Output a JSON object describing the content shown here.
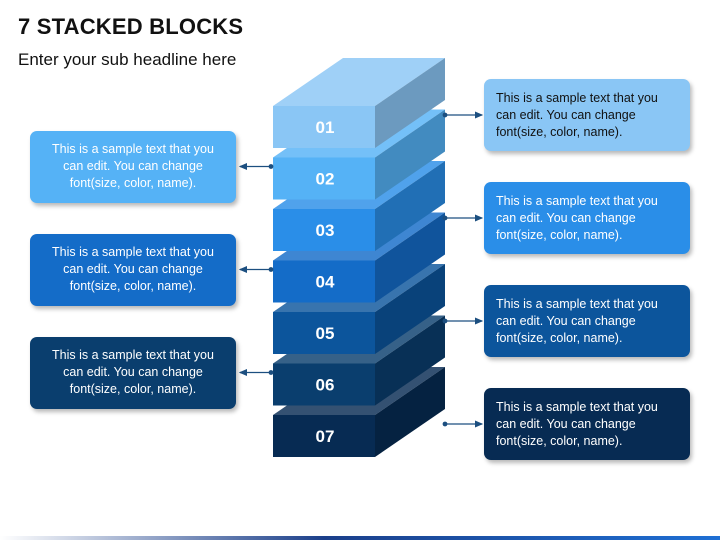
{
  "title": "7 STACKED BLOCKS",
  "subtitle": "Enter your sub headline here",
  "blocks": [
    {
      "label": "01",
      "color": "#8ac6f5",
      "side": "right",
      "text": "This is a sample text that you can edit. You can change font(size, color, name)."
    },
    {
      "label": "02",
      "color": "#55b2f6",
      "side": "left",
      "text": "This is a sample text that you can edit. You can change font(size, color, name)."
    },
    {
      "label": "03",
      "color": "#2a8ee8",
      "side": "right",
      "text": "This is a sample text that you can edit. You can change font(size, color, name)."
    },
    {
      "label": "04",
      "color": "#146cc8",
      "side": "left",
      "text": "This is a sample text that you can edit. You can change font(size, color, name)."
    },
    {
      "label": "05",
      "color": "#0c559c",
      "side": "right",
      "text": "This is a sample text that you can edit. You can change font(size, color, name)."
    },
    {
      "label": "06",
      "color": "#0a3e6e",
      "side": "left",
      "text": "This is a sample text that you can edit. You can change font(size, color, name)."
    },
    {
      "label": "07",
      "color": "#072b53",
      "side": "right",
      "text": "This is a sample text that you can edit. You can change font(size, color, name)."
    }
  ],
  "colors": {
    "connector": "#1c4f80",
    "text_dark": "#111111",
    "text_light": "#ffffff"
  }
}
